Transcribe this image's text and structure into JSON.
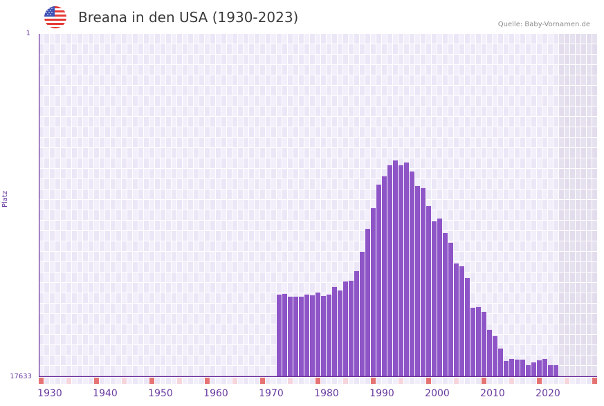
{
  "header": {
    "title": "Breana in den USA (1930-2023)",
    "source": "Quelle: Baby-Vornamen.de",
    "flag_icon": "us-flag-icon"
  },
  "colors": {
    "bar": "#8e55c7",
    "axis": "#6a2e9a",
    "grid_bg_a": "#f2effb",
    "grid_bg_b": "#ebe7f7",
    "future_shade": "#e2dcec",
    "decade_marker": "#e57373",
    "half_decade_marker": "#f6d5dd"
  },
  "chart_data": {
    "type": "bar",
    "title": "Breana in den USA (1930-2023)",
    "xlabel": "",
    "ylabel": "Platz",
    "y_axis_inverted": true,
    "ylim": [
      1,
      17633
    ],
    "yticks": [
      "1",
      "17633"
    ],
    "xticks": [
      "1930",
      "1940",
      "1950",
      "1960",
      "1970",
      "1980",
      "1990",
      "2000",
      "2010",
      "2020"
    ],
    "x_range": [
      1928,
      2028
    ],
    "future_shaded_from": 2022,
    "grid": true,
    "legend": null,
    "categories": [
      1971,
      1972,
      1973,
      1974,
      1975,
      1976,
      1977,
      1978,
      1979,
      1980,
      1981,
      1982,
      1983,
      1984,
      1985,
      1986,
      1987,
      1988,
      1989,
      1990,
      1991,
      1992,
      1993,
      1994,
      1995,
      1996,
      1997,
      1998,
      1999,
      2000,
      2001,
      2002,
      2003,
      2004,
      2005,
      2006,
      2007,
      2008,
      2009,
      2010,
      2011,
      2012,
      2013,
      2014,
      2015,
      2016,
      2017,
      2018,
      2019,
      2020,
      2021
    ],
    "values": [
      13401,
      13365,
      13507,
      13507,
      13507,
      13401,
      13436,
      13294,
      13472,
      13401,
      13010,
      13188,
      12725,
      12690,
      12192,
      11197,
      10024,
      8957,
      7748,
      7321,
      6752,
      6504,
      6752,
      6610,
      7072,
      7819,
      7926,
      8850,
      9632,
      9490,
      10237,
      10734,
      11801,
      11943,
      12547,
      14076,
      14040,
      14289,
      15213,
      15533,
      16173,
      16813,
      16706,
      16742,
      16742,
      17026,
      16884,
      16777,
      16706,
      17026,
      17026
    ]
  },
  "axes": {
    "y_top_label": "1",
    "y_bottom_label": "17633",
    "y_title": "Platz"
  }
}
